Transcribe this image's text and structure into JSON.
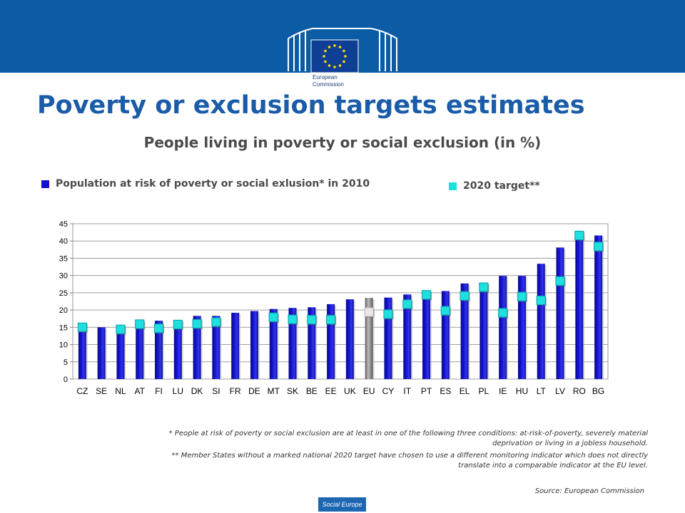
{
  "header": {
    "logo_line1": "European",
    "logo_line2": "Commission"
  },
  "slide": {
    "title": "Poverty or exclusion targets estimates",
    "subtitle": "People living in poverty or social exclusion (in %)"
  },
  "footnotes": {
    "note1": "* People at risk of poverty or social exclusion are at least in one of the following three conditions: at-risk-of-poverty, severely material deprivation or living in a jobless household.",
    "note2": "** Member States without a marked national 2020 target have chosen to use a different monitoring indicator which does not directly translate into a comparable indicator at the EU level.",
    "source": "Source: European Commission"
  },
  "footer": {
    "badge": "Social Europe"
  },
  "colors": {
    "header_band": "#0b5ca4",
    "title": "#1a5ca8",
    "bar": "#1212cc",
    "bar_eu": "#8c8c8c",
    "target": "#1fe0e0"
  },
  "chart_data": {
    "type": "bar",
    "categories": [
      "CZ",
      "SE",
      "NL",
      "AT",
      "FI",
      "LU",
      "DK",
      "SI",
      "FR",
      "DE",
      "MT",
      "SK",
      "BE",
      "EE",
      "UK",
      "EU",
      "CY",
      "IT",
      "PT",
      "ES",
      "EL",
      "PL",
      "IE",
      "HU",
      "LT",
      "LV",
      "RO",
      "BG"
    ],
    "series": [
      {
        "name": "Population at risk of poverty or social exlusion* in 2010",
        "type": "bar",
        "color": "#1212cc",
        "values": [
          14.4,
          15.0,
          15.1,
          16.6,
          16.9,
          17.1,
          18.3,
          18.3,
          19.2,
          19.7,
          20.3,
          20.6,
          20.8,
          21.7,
          23.1,
          23.5,
          23.6,
          24.5,
          25.3,
          25.5,
          27.7,
          27.8,
          29.9,
          29.9,
          33.4,
          38.1,
          41.4,
          41.6
        ]
      },
      {
        "name": "2020 target**",
        "type": "marker",
        "color": "#1fe0e0",
        "values": [
          15.0,
          null,
          14.4,
          15.9,
          14.7,
          15.8,
          16.0,
          16.5,
          null,
          null,
          17.9,
          17.3,
          17.2,
          17.2,
          null,
          19.4,
          18.8,
          21.7,
          24.4,
          19.8,
          24.1,
          26.6,
          19.2,
          23.9,
          22.8,
          28.4,
          41.6,
          38.4
        ]
      }
    ],
    "highlight_category": "EU",
    "ylim": [
      0,
      45
    ],
    "yticks": [
      0,
      5,
      10,
      15,
      20,
      25,
      30,
      35,
      40,
      45
    ],
    "grid": true,
    "legend_position": "top",
    "xlabel": "",
    "ylabel": ""
  }
}
